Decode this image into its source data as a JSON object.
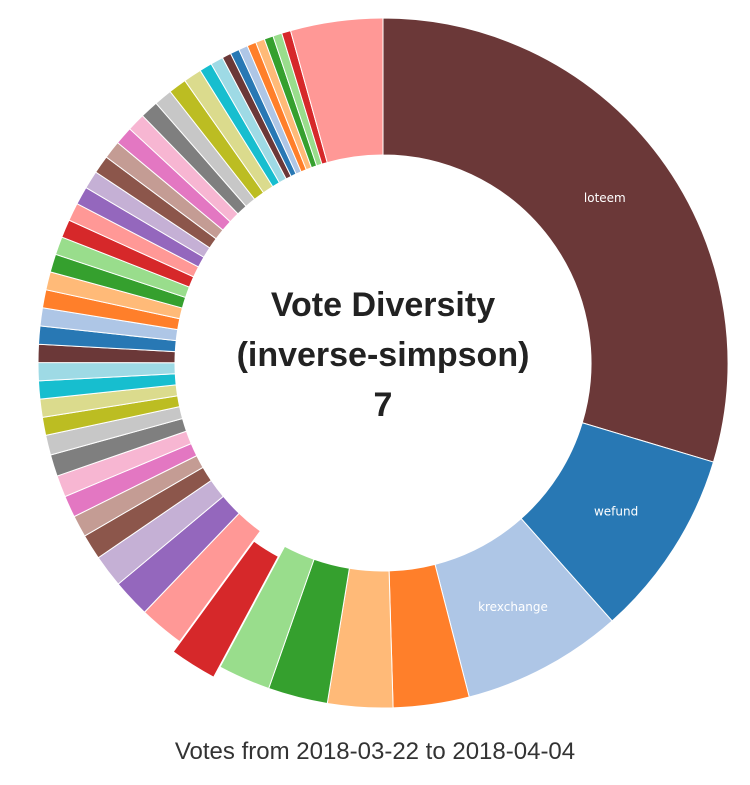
{
  "center": {
    "line1": "Vote Diversity",
    "line2": "(inverse-simpson)",
    "value": "7"
  },
  "caption": "Votes from 2018-03-22 to 2018-04-04",
  "chart_data": {
    "type": "pie",
    "variant": "donut",
    "highlighted_index": 7,
    "slices": [
      {
        "label": "loteem",
        "value": 35.0,
        "color": "#6b3838"
      },
      {
        "label": "wefund",
        "value": 10.4,
        "color": "#2878b4"
      },
      {
        "label": "krexchange",
        "value": 8.9,
        "color": "#aec6e6"
      },
      {
        "label": "",
        "value": 4.2,
        "color": "#ff7f2a"
      },
      {
        "label": "",
        "value": 3.6,
        "color": "#ffba78"
      },
      {
        "label": "",
        "value": 3.3,
        "color": "#35a02e"
      },
      {
        "label": "",
        "value": 2.9,
        "color": "#99dd8c"
      },
      {
        "label": "",
        "value": 2.6,
        "color": "#d6282a"
      },
      {
        "label": "",
        "value": 2.5,
        "color": "#ff9896"
      },
      {
        "label": "",
        "value": 2.1,
        "color": "#9467bd"
      },
      {
        "label": "",
        "value": 1.8,
        "color": "#c5b0d5"
      },
      {
        "label": "",
        "value": 1.4,
        "color": "#8c564b"
      },
      {
        "label": "",
        "value": 1.2,
        "color": "#c49c94"
      },
      {
        "label": "",
        "value": 1.2,
        "color": "#e377c2"
      },
      {
        "label": "",
        "value": 1.2,
        "color": "#f7b6d2"
      },
      {
        "label": "",
        "value": 1.2,
        "color": "#7f7f7f"
      },
      {
        "label": "",
        "value": 1.1,
        "color": "#c7c7c7"
      },
      {
        "label": "",
        "value": 1.0,
        "color": "#bcbd22"
      },
      {
        "label": "",
        "value": 1.0,
        "color": "#dbdb8d"
      },
      {
        "label": "",
        "value": 1.0,
        "color": "#17becf"
      },
      {
        "label": "",
        "value": 1.0,
        "color": "#9edae5"
      },
      {
        "label": "",
        "value": 1.0,
        "color": "#6b3838"
      },
      {
        "label": "",
        "value": 1.0,
        "color": "#2878b4"
      },
      {
        "label": "",
        "value": 1.0,
        "color": "#aec6e6"
      },
      {
        "label": "",
        "value": 1.0,
        "color": "#ff7f2a"
      },
      {
        "label": "",
        "value": 1.0,
        "color": "#ffba78"
      },
      {
        "label": "",
        "value": 1.0,
        "color": "#35a02e"
      },
      {
        "label": "",
        "value": 1.0,
        "color": "#99dd8c"
      },
      {
        "label": "",
        "value": 1.0,
        "color": "#d6282a"
      },
      {
        "label": "",
        "value": 1.0,
        "color": "#ff9896"
      },
      {
        "label": "",
        "value": 1.0,
        "color": "#9467bd"
      },
      {
        "label": "",
        "value": 1.0,
        "color": "#c5b0d5"
      },
      {
        "label": "",
        "value": 1.0,
        "color": "#8c564b"
      },
      {
        "label": "",
        "value": 1.0,
        "color": "#c49c94"
      },
      {
        "label": "",
        "value": 1.0,
        "color": "#e377c2"
      },
      {
        "label": "",
        "value": 1.0,
        "color": "#f7b6d2"
      },
      {
        "label": "",
        "value": 1.0,
        "color": "#7f7f7f"
      },
      {
        "label": "",
        "value": 1.0,
        "color": "#c7c7c7"
      },
      {
        "label": "",
        "value": 1.0,
        "color": "#bcbd22"
      },
      {
        "label": "",
        "value": 1.0,
        "color": "#dbdb8d"
      },
      {
        "label": "",
        "value": 0.7,
        "color": "#17becf"
      },
      {
        "label": "",
        "value": 0.7,
        "color": "#9edae5"
      },
      {
        "label": "",
        "value": 0.5,
        "color": "#6b3838"
      },
      {
        "label": "",
        "value": 0.5,
        "color": "#2878b4"
      },
      {
        "label": "",
        "value": 0.5,
        "color": "#aec6e6"
      },
      {
        "label": "",
        "value": 0.5,
        "color": "#ff7f2a"
      },
      {
        "label": "",
        "value": 0.5,
        "color": "#ffba78"
      },
      {
        "label": "",
        "value": 0.5,
        "color": "#35a02e"
      },
      {
        "label": "",
        "value": 0.5,
        "color": "#99dd8c"
      },
      {
        "label": "",
        "value": 0.5,
        "color": "#d6282a"
      },
      {
        "label": "",
        "value": 5.1,
        "color": "#ff9896"
      }
    ]
  }
}
